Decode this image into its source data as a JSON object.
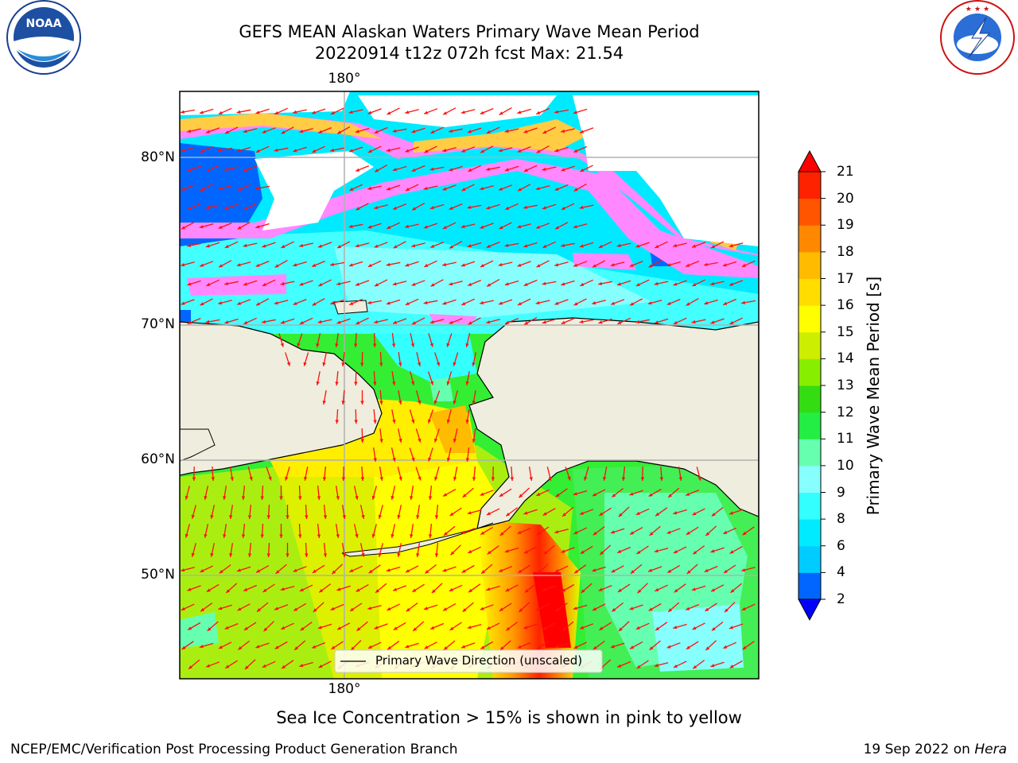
{
  "header": {
    "title_line1": "GEFS MEAN Alaskan Waters Primary Wave Mean Period",
    "title_line2": "20220914 t12z 072h fcst   Max: 21.54"
  },
  "map": {
    "top_lon_label": "180°",
    "bottom_lon_label": "180°",
    "lat_labels": [
      "80°N",
      "70°N",
      "60°N",
      "50°N"
    ],
    "legend_label": "Primary Wave Direction (unscaled)",
    "land_color": "#efeddd",
    "arrow_color": "#ff1010"
  },
  "colorbar": {
    "label": "Primary Wave Mean Period [s]",
    "ticks": [
      "2",
      "4",
      "6",
      "8",
      "9",
      "10",
      "11",
      "12",
      "13",
      "14",
      "15",
      "16",
      "17",
      "18",
      "19",
      "20",
      "21"
    ],
    "colors": [
      "#0000ff",
      "#0066ff",
      "#00ccff",
      "#00ebff",
      "#33ffff",
      "#88ffff",
      "#66ffb0",
      "#22ee44",
      "#33dd11",
      "#88ee00",
      "#ccee00",
      "#ffff00",
      "#ffdd00",
      "#ffbb00",
      "#ff8800",
      "#ff5500",
      "#ff2200",
      "#ff0000"
    ]
  },
  "footer": {
    "note": "Sea Ice Concentration > 15% is shown in pink to yellow",
    "credit": "NCEP/EMC/Verification Post Processing Product Generation Branch",
    "date_prefix": "19 Sep 2022 on ",
    "date_host": "Hera"
  },
  "logos": {
    "left": {
      "name": "noaa-logo",
      "text": "NOAA"
    },
    "right": {
      "name": "nws-logo",
      "text": "NATIONAL WEATHER SERVICE"
    }
  }
}
